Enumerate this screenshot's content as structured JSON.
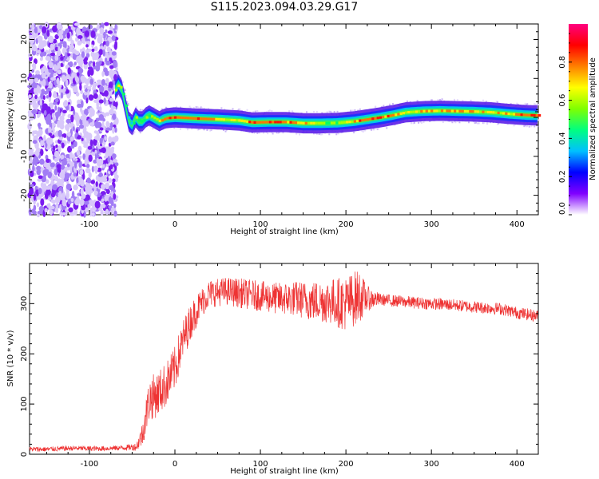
{
  "title": "S115.2023.094.03.29.G17",
  "chart_data": [
    {
      "type": "heatmap",
      "xlabel": "Height of straight line (km)",
      "ylabel": "Frequency (Hz)",
      "xlim": [
        -170,
        425
      ],
      "ylim": [
        -25,
        24
      ],
      "xticks": [
        -100,
        0,
        100,
        200,
        300,
        400
      ],
      "yticks": [
        -20,
        -10,
        0,
        10,
        20
      ],
      "colorbar": {
        "label": "Normalized spectral amplitude",
        "range": [
          0,
          1
        ],
        "ticks": [
          "0.0",
          "0.2",
          "0.4",
          "0.6",
          "0.8"
        ],
        "tick_values": [
          0,
          0.2,
          0.4,
          0.6,
          0.8
        ],
        "colors": [
          "#ffffff",
          "#8000ff",
          "#0000ff",
          "#00c0ff",
          "#00ff80",
          "#80ff00",
          "#ffff00",
          "#ff8000",
          "#ff0000",
          "#ff0080"
        ]
      },
      "noise_region": {
        "x_range": [
          -170,
          -68
        ],
        "y_range": [
          -25,
          24
        ]
      },
      "ridge": {
        "x": [
          -70,
          -66,
          -62,
          -58,
          -54,
          -50,
          -46,
          -42,
          -38,
          -34,
          -30,
          -26,
          -22,
          -18,
          -14,
          -10,
          0,
          25,
          50,
          75,
          90,
          110,
          130,
          150,
          170,
          190,
          210,
          225,
          240,
          255,
          270,
          290,
          310,
          330,
          350,
          370,
          390,
          410,
          425
        ],
        "freq": [
          7,
          8.5,
          7,
          3,
          -1,
          -2,
          0,
          -1,
          -1,
          0,
          0.5,
          0,
          -0.5,
          -1,
          -0.5,
          -0.2,
          0,
          -0.3,
          -0.5,
          -0.8,
          -1.3,
          -1.2,
          -1.2,
          -1.5,
          -1.5,
          -1.4,
          -1.0,
          -0.5,
          0,
          0.6,
          1.3,
          1.6,
          1.7,
          1.6,
          1.5,
          1.3,
          0.9,
          0.6,
          0.5
        ],
        "amplitude": [
          0.6,
          0.75,
          0.55,
          0.45,
          0.4,
          0.45,
          0.5,
          0.55,
          0.5,
          0.6,
          0.55,
          0.5,
          0.6,
          0.65,
          0.7,
          0.75,
          0.8,
          0.75,
          0.7,
          0.65,
          0.8,
          0.8,
          0.75,
          0.7,
          0.6,
          0.55,
          0.75,
          0.8,
          0.8,
          0.75,
          0.65,
          0.7,
          0.72,
          0.75,
          0.7,
          0.65,
          0.7,
          0.8,
          0.85
        ]
      }
    },
    {
      "type": "line",
      "xlabel": "Height of straight line (km)",
      "ylabel": "SNR (10 * v/v)",
      "xlim": [
        -170,
        425
      ],
      "ylim": [
        0,
        380
      ],
      "xticks": [
        -100,
        0,
        100,
        200,
        300,
        400
      ],
      "yticks": [
        0,
        100,
        200,
        300
      ],
      "color": "#ee3333",
      "series": [
        {
          "x": [
            -170,
            -150,
            -120,
            -90,
            -60,
            -45,
            -38,
            -30,
            -20,
            -10,
            0,
            10,
            20,
            30,
            40,
            60,
            80,
            100,
            120,
            140,
            160,
            180,
            200,
            215,
            225,
            240,
            260,
            280,
            300,
            320,
            340,
            360,
            380,
            400,
            425
          ],
          "values": [
            10,
            10,
            12,
            11,
            13,
            15,
            40,
            110,
            120,
            140,
            170,
            230,
            270,
            300,
            320,
            325,
            320,
            315,
            310,
            310,
            305,
            305,
            300,
            315,
            310,
            308,
            305,
            302,
            300,
            298,
            295,
            292,
            290,
            282,
            275
          ],
          "noise": [
            5,
            5,
            5,
            5,
            5,
            8,
            25,
            45,
            45,
            45,
            45,
            40,
            35,
            30,
            28,
            28,
            30,
            30,
            32,
            35,
            40,
            45,
            55,
            55,
            25,
            12,
            12,
            12,
            12,
            12,
            12,
            12,
            12,
            12,
            12
          ]
        }
      ]
    }
  ]
}
